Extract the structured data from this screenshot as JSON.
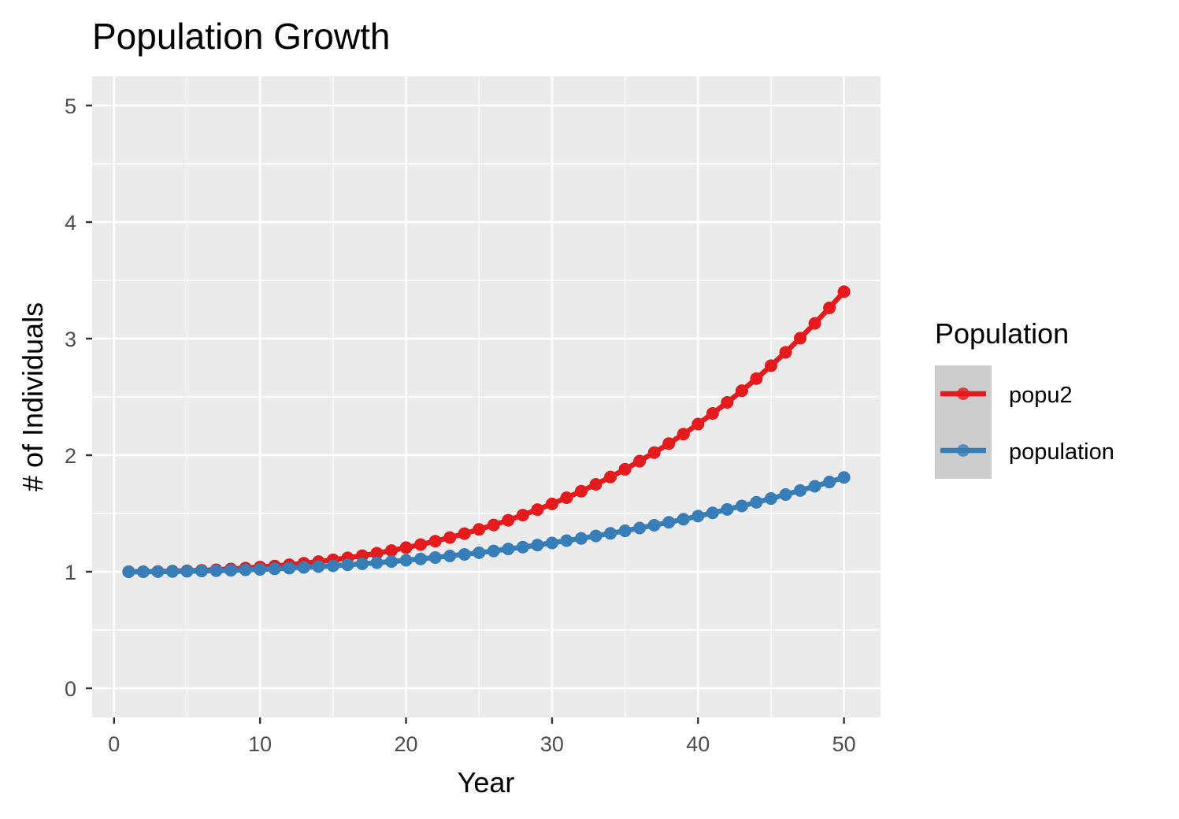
{
  "chart_data": {
    "type": "line",
    "title": "Population Growth",
    "xlabel": "Year",
    "ylabel": "# of Individuals",
    "xlim": [
      -1.5,
      52.5
    ],
    "ylim": [
      -0.25,
      5.25
    ],
    "x_ticks": [
      0,
      10,
      20,
      30,
      40,
      50
    ],
    "x_tick_labels": [
      "0",
      "10",
      "20",
      "30",
      "40",
      "50"
    ],
    "y_ticks": [
      0,
      1,
      2,
      3,
      4,
      5
    ],
    "y_tick_labels": [
      "0",
      "1",
      "2",
      "3",
      "4",
      "5"
    ],
    "grid": true,
    "legend": {
      "title": "Population",
      "position": "right"
    },
    "x": [
      1,
      2,
      3,
      4,
      5,
      6,
      7,
      8,
      9,
      10,
      11,
      12,
      13,
      14,
      15,
      16,
      17,
      18,
      19,
      20,
      21,
      22,
      23,
      24,
      25,
      26,
      27,
      28,
      29,
      30,
      31,
      32,
      33,
      34,
      35,
      36,
      37,
      38,
      39,
      40,
      41,
      42,
      43,
      44,
      45,
      46,
      47,
      48,
      49,
      50
    ],
    "series": [
      {
        "name": "popu2",
        "color": "#e41a1c",
        "values": [
          1.0,
          1.0,
          1.002,
          1.005,
          1.008,
          1.012,
          1.017,
          1.024,
          1.031,
          1.04,
          1.049,
          1.06,
          1.073,
          1.087,
          1.102,
          1.119,
          1.138,
          1.159,
          1.182,
          1.207,
          1.233,
          1.262,
          1.293,
          1.327,
          1.363,
          1.401,
          1.442,
          1.486,
          1.533,
          1.582,
          1.635,
          1.691,
          1.75,
          1.813,
          1.879,
          1.949,
          2.022,
          2.1,
          2.181,
          2.267,
          2.358,
          2.453,
          2.553,
          2.657,
          2.768,
          2.883,
          3.004,
          3.131,
          3.264,
          3.403
        ]
      },
      {
        "name": "population",
        "color": "#377eb8",
        "values": [
          1.0,
          1.0,
          1.001,
          1.002,
          1.004,
          1.006,
          1.009,
          1.012,
          1.016,
          1.02,
          1.025,
          1.031,
          1.037,
          1.044,
          1.051,
          1.059,
          1.068,
          1.077,
          1.087,
          1.098,
          1.11,
          1.122,
          1.135,
          1.149,
          1.163,
          1.178,
          1.195,
          1.211,
          1.229,
          1.247,
          1.267,
          1.286,
          1.307,
          1.329,
          1.351,
          1.375,
          1.399,
          1.424,
          1.45,
          1.477,
          1.505,
          1.535,
          1.564,
          1.596,
          1.628,
          1.662,
          1.697,
          1.733,
          1.77,
          1.809
        ]
      }
    ]
  }
}
